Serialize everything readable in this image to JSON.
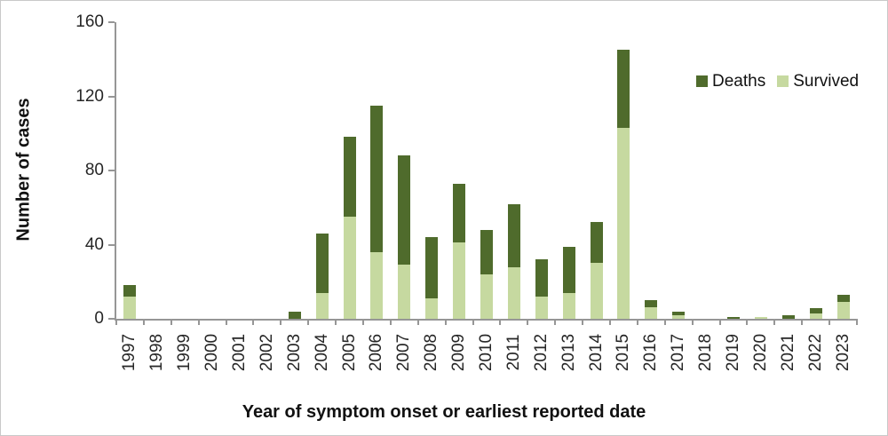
{
  "chart_data": {
    "type": "bar",
    "stacked": true,
    "xlabel": "Year of symptom onset or earliest reported date",
    "ylabel": "Number of cases",
    "ylim": [
      0,
      160
    ],
    "yticks": [
      0,
      40,
      80,
      120,
      160
    ],
    "grid": false,
    "legend_position": "top-right",
    "categories": [
      "1997",
      "1998",
      "1999",
      "2000",
      "2001",
      "2002",
      "2003",
      "2004",
      "2005",
      "2006",
      "2007",
      "2008",
      "2009",
      "2010",
      "2011",
      "2012",
      "2013",
      "2014",
      "2015",
      "2016",
      "2017",
      "2018",
      "2019",
      "2020",
      "2021",
      "2022",
      "2023"
    ],
    "series": [
      {
        "name": "Deaths",
        "color": "#4f6b2c",
        "values": [
          6,
          0,
          0,
          0,
          0,
          0,
          4,
          32,
          43,
          79,
          59,
          33,
          32,
          24,
          34,
          20,
          25,
          22,
          42,
          4,
          2,
          0,
          1,
          0,
          2,
          3,
          4
        ]
      },
      {
        "name": "Survived",
        "color": "#c6d9a0",
        "values": [
          12,
          0,
          0,
          0,
          0,
          0,
          0,
          14,
          55,
          36,
          29,
          11,
          41,
          24,
          28,
          12,
          14,
          30,
          103,
          6,
          2,
          0,
          0,
          1,
          0,
          3,
          9
        ]
      }
    ]
  },
  "colors": {
    "axis_line": "#969696",
    "tick_text": "#262626",
    "title_text": "#111111",
    "background": "#ffffff"
  }
}
